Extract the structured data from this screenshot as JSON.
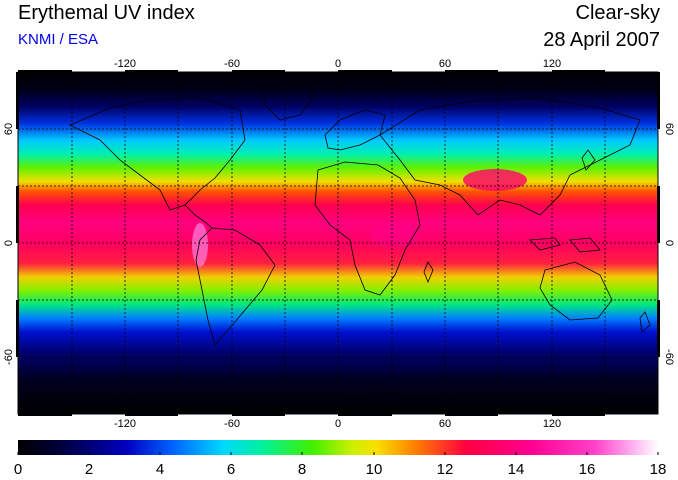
{
  "header": {
    "title": "Erythemal UV index",
    "organization": "KNMI / ESA",
    "condition": "Clear-sky",
    "date": "28 April 2007"
  },
  "map": {
    "projection": "equirectangular",
    "lon_range": [
      -180,
      180
    ],
    "lat_range": [
      -90,
      90
    ],
    "lon_ticks": [
      "-120",
      "-60",
      "0",
      "60",
      "120"
    ],
    "lat_ticks_left": [
      "60",
      "0",
      "-60"
    ],
    "lat_ticks_right": [
      "60",
      "0",
      "-60"
    ],
    "graticule": "dashed every 30 degrees",
    "feature": "UV index field with coastlines",
    "palette": [
      "#000000",
      "#000040",
      "#0000c0",
      "#0060ff",
      "#00d8ff",
      "#00f0a0",
      "#40f000",
      "#c8f000",
      "#f8e000",
      "#ff8000",
      "#ff0040",
      "#ff0090",
      "#ff40c8",
      "#ffb0f0",
      "#ffffff"
    ]
  },
  "colorbar": {
    "min": 0,
    "max": 18,
    "labels": [
      "0",
      "2",
      "4",
      "6",
      "8",
      "10",
      "12",
      "14",
      "16",
      "18"
    ]
  }
}
